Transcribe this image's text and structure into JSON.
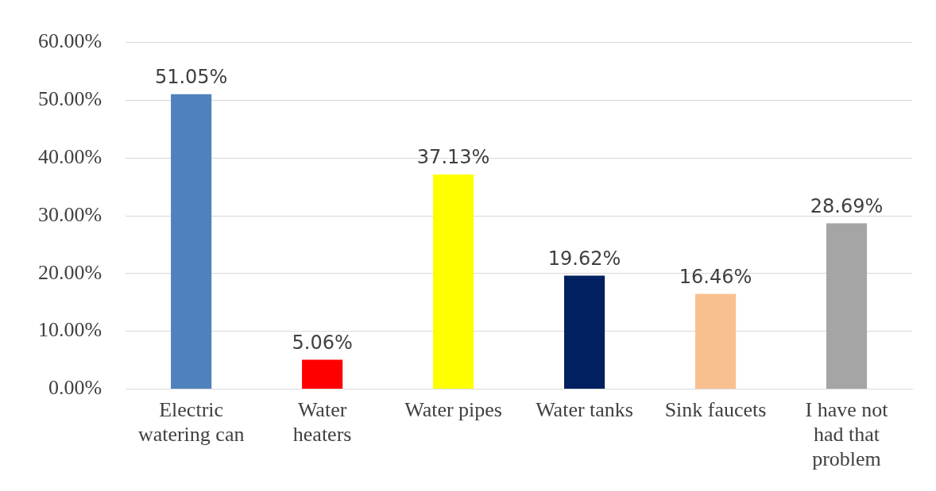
{
  "chart_data": {
    "type": "bar",
    "categories": [
      "Electric watering can",
      "Water heaters",
      "Water pipes",
      "Water tanks",
      "Sink faucets",
      "I have not had that problem"
    ],
    "values": [
      51.05,
      5.06,
      37.13,
      19.62,
      16.46,
      28.69
    ],
    "colors": [
      "#4f81bd",
      "#ff0000",
      "#ffff00",
      "#002060",
      "#f9c08f",
      "#a5a5a5"
    ],
    "value_labels": [
      "51.05%",
      "5.06%",
      "37.13%",
      "19.62%",
      "16.46%",
      "28.69%"
    ],
    "ylim": [
      0,
      60
    ],
    "yticks": [
      {
        "value": 0,
        "label": "0.00%"
      },
      {
        "value": 10,
        "label": "10.00%"
      },
      {
        "value": 20,
        "label": "20.00%"
      },
      {
        "value": 30,
        "label": "30.00%"
      },
      {
        "value": 40,
        "label": "40.00%"
      },
      {
        "value": 50,
        "label": "50.00%"
      },
      {
        "value": 60,
        "label": "60.00%"
      }
    ],
    "grid": "y",
    "legend": false
  }
}
